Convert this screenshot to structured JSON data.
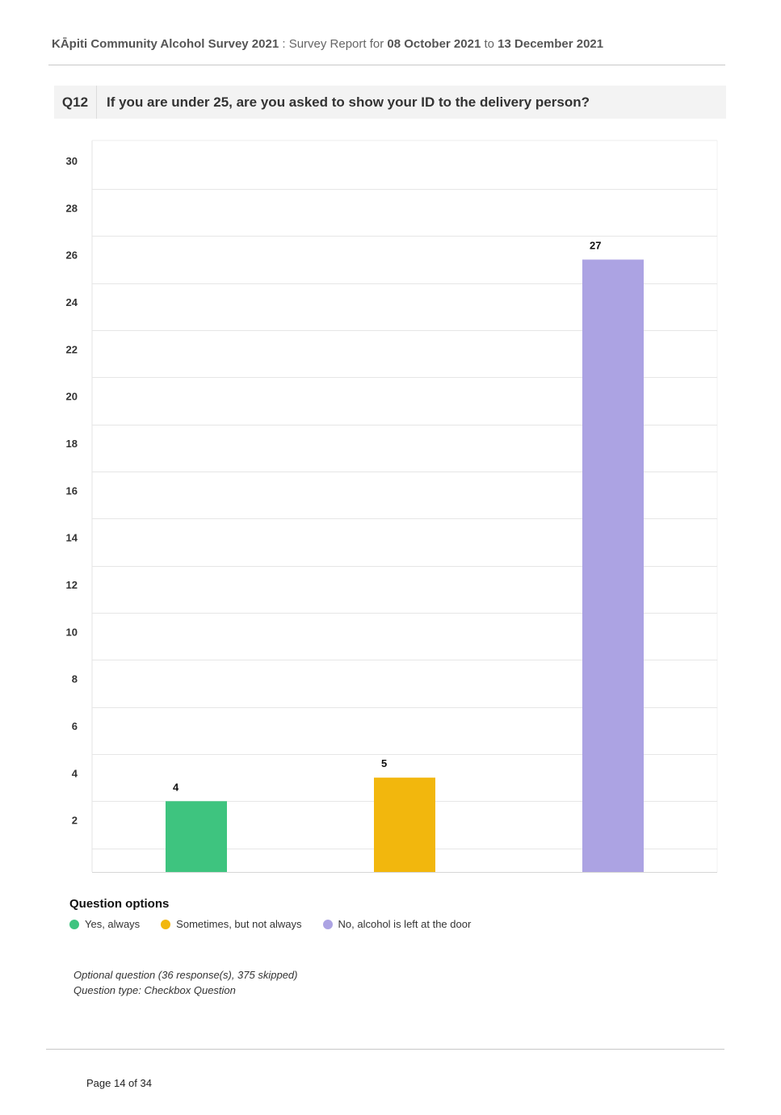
{
  "header": {
    "survey_title": "KĀpiti Community Alcohol Survey 2021",
    "separator": ":",
    "report_prefix": "Survey Report for",
    "start_date": "08 October 2021",
    "to_word": "to",
    "end_date": "13 December 2021"
  },
  "question": {
    "number": "Q12",
    "text": "If you are under 25, are you asked to show your ID to the delivery person?"
  },
  "chart_data": {
    "type": "bar",
    "categories": [
      "Yes, always",
      "Sometimes, but not always",
      "No, alcohol is left at the door"
    ],
    "values": [
      4,
      5,
      27
    ],
    "colors": [
      "#3ec47f",
      "#f2b70d",
      "#aca3e3"
    ],
    "ylim": [
      0,
      30
    ],
    "yticks": [
      2,
      4,
      6,
      8,
      10,
      12,
      14,
      16,
      18,
      20,
      22,
      24,
      26,
      28,
      30
    ],
    "grid": true,
    "legend_position": "bottom-left",
    "title": "",
    "xlabel": "",
    "ylabel": ""
  },
  "legend": {
    "title": "Question options",
    "items": [
      {
        "label": "Yes, always",
        "color": "#3ec47f"
      },
      {
        "label": "Sometimes, but not always",
        "color": "#f2b70d"
      },
      {
        "label": "No, alcohol is left at the door",
        "color": "#aca3e3"
      }
    ]
  },
  "notes": {
    "responses": "Optional question (36 response(s), 375 skipped)",
    "question_type": "Question type: Checkbox Question"
  },
  "footer": {
    "page": "Page 14 of 34"
  }
}
